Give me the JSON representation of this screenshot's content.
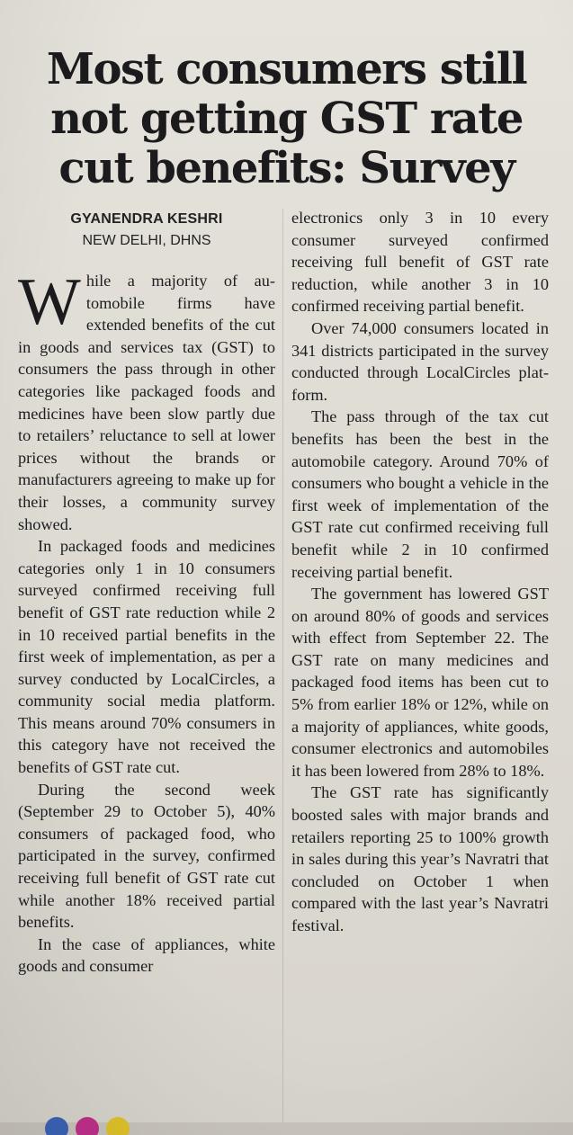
{
  "article": {
    "headline": [
      "Most consumers still",
      "not getting GST rate",
      "cut benefits: Survey"
    ],
    "author": "GYANENDRA KESHRI",
    "dateline": "NEW DELHI, DHNS",
    "dropcap": "W",
    "col1": {
      "p1_rest": "hile a majority of au­tomobile firms have extended benefits of the cut in goods and services tax (GST) to consumers the pass through in other catego­ries like packaged foods and medicines have been slow part­ly due to retailers’ reluctance to sell at lower prices without the brands or manufacturers agreeing to make up for their losses, a community survey showed.",
      "p2": "In packaged foods and medicines categories only 1 in 10 consumers surveyed con­firmed receiving full benefit of GST rate reduction while 2 in 10 received partial benefits in the first week of implementa­tion, as per a survey conducted by LocalCircles, a community social media platform. This means around 70% consum­ers in this category have not received the benefits of GST rate cut.",
      "p3": "During the second week (September 29 to October 5), 40% consumers of packaged food, who participated in the survey, confirmed receiving full benefit of GST rate cut while another 18% received partial benefits.",
      "p4": "In the case of appliances, white goods and consumer"
    },
    "col2": {
      "p1_cont": "electronics only 3 in 10 every consumer surveyed confirmed receiving full benefit of GST rate reduction, while another 3 in 10 confirmed receiving partial benefit.",
      "p2": "Over 74,000 consumers located in 341 districts partici­pated in the survey conducted through LocalCircles plat­form.",
      "p3": "The pass through of the tax cut benefits has been the best in the automobile category. Around 70% of consumers who bought a vehicle in the first week of implementation of the GST rate cut confirmed receiving full benefit while 2 in 10 confirmed receiving partial benefit.",
      "p4": "The government has low­ered GST on around 80% of goods and services with effect from September 22. The GST rate on many medicines and packaged food items has been cut to 5% from earlier 18% or 12%, while on a majority of ap­pliances, white goods, consum­er electronics and automobiles it has been lowered from 28% to 18%.",
      "p5": "The GST rate has signifi­cantly boosted sales with major brands and retailers reporting 25 to 100% growth in sales dur­ing this year’s Navratri that concluded on October 1 when compared with the last year’s Navratri festival."
    }
  },
  "colors": {
    "paper": "#e3e0d9",
    "ink": "#1d1d1f"
  }
}
